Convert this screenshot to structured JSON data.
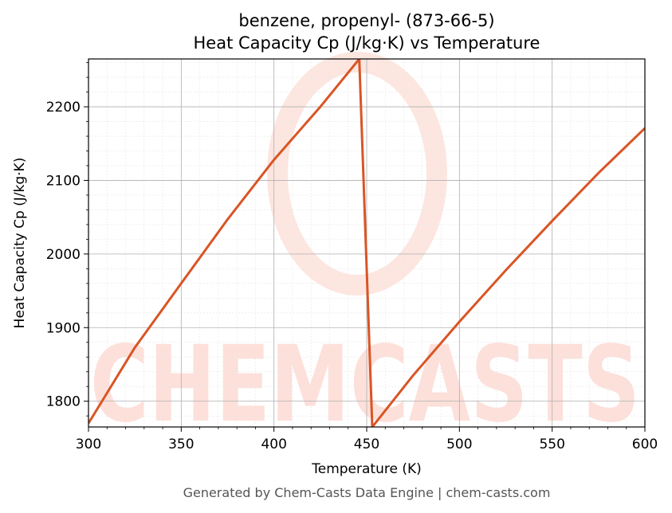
{
  "chart_data": {
    "type": "line",
    "title_line1": "benzene, propenyl- (873-66-5)",
    "title_line2": "Heat Capacity Cp (J/kg·K) vs Temperature",
    "xlabel": "Temperature (K)",
    "ylabel": "Heat Capacity Cp (J/kg·K)",
    "xlim": [
      300,
      600
    ],
    "ylim": [
      1765,
      2265
    ],
    "x_ticks": [
      "300",
      "350",
      "400",
      "450",
      "500",
      "550",
      "600"
    ],
    "y_ticks": [
      "1800",
      "1900",
      "2000",
      "2100",
      "2200"
    ],
    "grid": true,
    "series": [
      {
        "color": "#d95525",
        "points": [
          [
            300,
            1770
          ],
          [
            325,
            1873
          ],
          [
            350,
            1960
          ],
          [
            375,
            2047
          ],
          [
            400,
            2128
          ],
          [
            425,
            2200
          ],
          [
            446,
            2265
          ],
          [
            453,
            1765
          ],
          [
            475,
            1835
          ],
          [
            500,
            1908
          ],
          [
            525,
            1978
          ],
          [
            550,
            2045
          ],
          [
            575,
            2110
          ],
          [
            600,
            2171
          ]
        ]
      }
    ]
  },
  "watermark": {
    "text": "CHEMCASTS",
    "color": "#fde0da"
  },
  "footer": "Generated by Chem-Casts Data Engine | chem-casts.com"
}
